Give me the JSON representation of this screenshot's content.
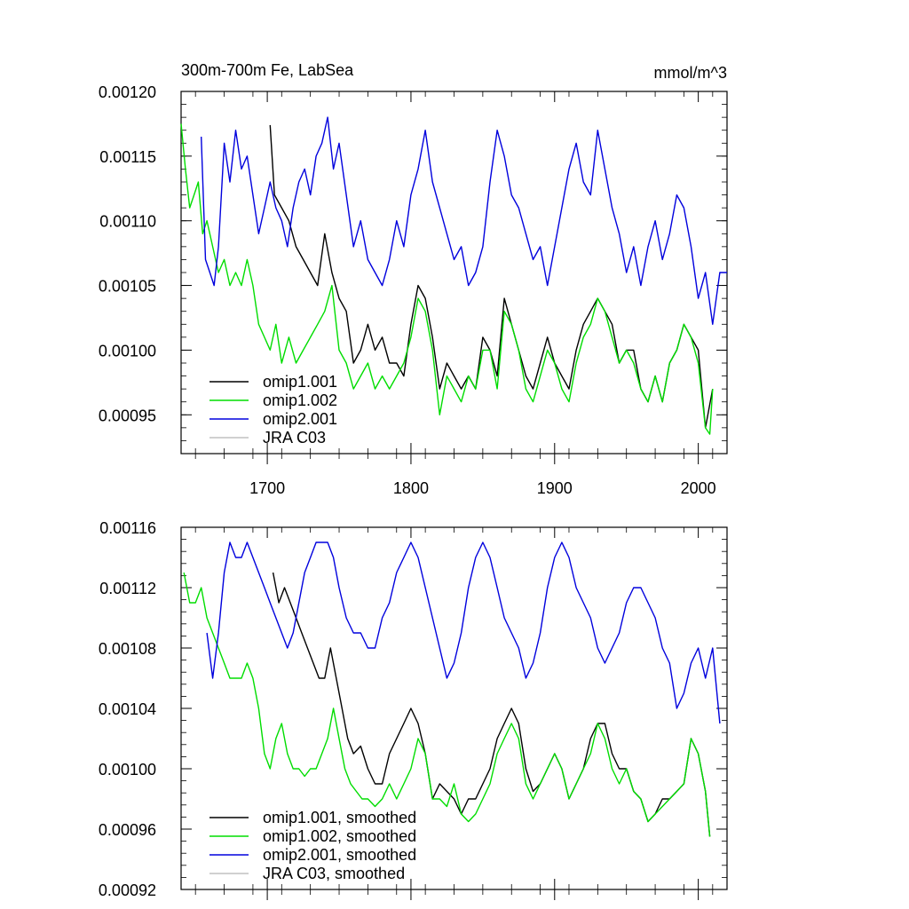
{
  "chart_data": [
    {
      "type": "line",
      "title": "300m-700m Fe, LabSea",
      "units": "mmol/m^3",
      "xlabel": "",
      "ylabel": "",
      "xlim": [
        1640,
        2020
      ],
      "ylim": [
        0.00092,
        0.0012
      ],
      "xticks": [
        1700,
        1800,
        1900,
        2000
      ],
      "xtick_labels": [
        "1700",
        "1800",
        "1900",
        "2000"
      ],
      "yticks": [
        0.00095,
        0.001,
        0.00105,
        0.0011,
        0.00115,
        0.0012
      ],
      "ytick_labels": [
        "0.00095",
        "0.00100",
        "0.00105",
        "0.00110",
        "0.00115",
        "0.00120"
      ],
      "grid": false,
      "legend_position": "bottom-left",
      "series": [
        {
          "name": "omip1.001",
          "color": "#000000",
          "x": [
            1702,
            1705,
            1710,
            1715,
            1720,
            1725,
            1730,
            1735,
            1740,
            1745,
            1750,
            1755,
            1760,
            1765,
            1770,
            1775,
            1780,
            1785,
            1790,
            1795,
            1800,
            1805,
            1810,
            1815,
            1820,
            1825,
            1830,
            1835,
            1840,
            1845,
            1850,
            1855,
            1860,
            1865,
            1870,
            1875,
            1880,
            1885,
            1890,
            1895,
            1900,
            1905,
            1910,
            1915,
            1920,
            1925,
            1930,
            1935,
            1940,
            1945,
            1950,
            1955,
            1960,
            1965,
            1970,
            1975,
            1980,
            1985,
            1990,
            1995,
            2000,
            2005,
            2010
          ],
          "y": [
            0.001174,
            0.00112,
            0.00111,
            0.0011,
            0.00108,
            0.00107,
            0.00106,
            0.00105,
            0.00109,
            0.00106,
            0.00104,
            0.00103,
            0.00099,
            0.001,
            0.00102,
            0.001,
            0.00101,
            0.00099,
            0.00099,
            0.00098,
            0.00102,
            0.00105,
            0.00104,
            0.00101,
            0.00097,
            0.00099,
            0.00098,
            0.00097,
            0.00098,
            0.00097,
            0.00101,
            0.001,
            0.00098,
            0.00104,
            0.00102,
            0.001,
            0.00098,
            0.00097,
            0.00099,
            0.00101,
            0.00099,
            0.00098,
            0.00097,
            0.001,
            0.00102,
            0.00103,
            0.00104,
            0.00103,
            0.00102,
            0.00099,
            0.001,
            0.001,
            0.00097,
            0.00096,
            0.00098,
            0.00096,
            0.00099,
            0.001,
            0.00102,
            0.00101,
            0.001,
            0.00094,
            0.00097
          ]
        },
        {
          "name": "omip1.002",
          "color": "#00dd00",
          "x": [
            1640,
            1643,
            1646,
            1649,
            1652,
            1655,
            1658,
            1662,
            1666,
            1670,
            1674,
            1678,
            1682,
            1686,
            1690,
            1694,
            1698,
            1702,
            1706,
            1710,
            1715,
            1720,
            1725,
            1730,
            1735,
            1740,
            1745,
            1750,
            1755,
            1760,
            1765,
            1770,
            1775,
            1780,
            1785,
            1790,
            1795,
            1800,
            1805,
            1810,
            1815,
            1820,
            1825,
            1830,
            1835,
            1840,
            1845,
            1850,
            1855,
            1860,
            1865,
            1870,
            1875,
            1880,
            1885,
            1890,
            1895,
            1900,
            1905,
            1910,
            1915,
            1920,
            1925,
            1930,
            1935,
            1940,
            1945,
            1950,
            1955,
            1960,
            1965,
            1970,
            1975,
            1980,
            1985,
            1990,
            1995,
            2000,
            2005,
            2008,
            2010
          ],
          "y": [
            0.001175,
            0.00114,
            0.00111,
            0.00112,
            0.00113,
            0.00109,
            0.0011,
            0.00108,
            0.00106,
            0.00107,
            0.00105,
            0.00106,
            0.00105,
            0.00107,
            0.00105,
            0.00102,
            0.00101,
            0.001,
            0.00102,
            0.00099,
            0.00101,
            0.00099,
            0.001,
            0.00101,
            0.00102,
            0.00103,
            0.00105,
            0.001,
            0.00099,
            0.00097,
            0.00098,
            0.00099,
            0.00097,
            0.00098,
            0.00097,
            0.00098,
            0.00099,
            0.00101,
            0.00104,
            0.00103,
            0.001,
            0.00095,
            0.00098,
            0.00097,
            0.00096,
            0.00098,
            0.00097,
            0.001,
            0.001,
            0.00097,
            0.00103,
            0.00102,
            0.001,
            0.00097,
            0.00096,
            0.00098,
            0.001,
            0.00099,
            0.00097,
            0.00096,
            0.00099,
            0.00101,
            0.00102,
            0.00104,
            0.00103,
            0.00101,
            0.00099,
            0.001,
            0.00099,
            0.00097,
            0.00096,
            0.00098,
            0.00096,
            0.00099,
            0.001,
            0.00102,
            0.00101,
            0.00099,
            0.00094,
            0.000935,
            0.00097
          ]
        },
        {
          "name": "omip2.001",
          "color": "#0000dd",
          "x": [
            1654,
            1657,
            1660,
            1663,
            1666,
            1670,
            1674,
            1678,
            1682,
            1686,
            1690,
            1694,
            1698,
            1702,
            1706,
            1710,
            1714,
            1718,
            1722,
            1726,
            1730,
            1734,
            1738,
            1742,
            1746,
            1750,
            1755,
            1760,
            1765,
            1770,
            1775,
            1780,
            1785,
            1790,
            1795,
            1800,
            1805,
            1810,
            1815,
            1820,
            1825,
            1830,
            1835,
            1840,
            1845,
            1850,
            1855,
            1860,
            1865,
            1870,
            1875,
            1880,
            1885,
            1890,
            1895,
            1900,
            1905,
            1910,
            1915,
            1920,
            1925,
            1930,
            1935,
            1940,
            1945,
            1950,
            1955,
            1960,
            1965,
            1970,
            1975,
            1980,
            1985,
            1990,
            1995,
            2000,
            2005,
            2010,
            2015,
            2020
          ],
          "y": [
            0.001165,
            0.00107,
            0.00106,
            0.00105,
            0.00108,
            0.00116,
            0.00113,
            0.00117,
            0.00114,
            0.00115,
            0.00112,
            0.00109,
            0.00111,
            0.00113,
            0.00111,
            0.0011,
            0.00108,
            0.00111,
            0.00113,
            0.00114,
            0.00112,
            0.00115,
            0.00116,
            0.00118,
            0.00114,
            0.00116,
            0.00112,
            0.00108,
            0.0011,
            0.00107,
            0.00106,
            0.00105,
            0.00107,
            0.0011,
            0.00108,
            0.00112,
            0.00114,
            0.00117,
            0.00113,
            0.00111,
            0.00109,
            0.00107,
            0.00108,
            0.00105,
            0.00106,
            0.00108,
            0.00113,
            0.00117,
            0.00115,
            0.00112,
            0.00111,
            0.00109,
            0.00107,
            0.00108,
            0.00105,
            0.00108,
            0.00111,
            0.00114,
            0.00116,
            0.00113,
            0.00112,
            0.00117,
            0.00114,
            0.00111,
            0.00109,
            0.00106,
            0.00108,
            0.00105,
            0.00108,
            0.0011,
            0.00107,
            0.00109,
            0.00112,
            0.00111,
            0.00108,
            0.00104,
            0.00106,
            0.00102,
            0.00106,
            0.00106
          ]
        },
        {
          "name": "JRA C03",
          "color": "#c0c0c0",
          "x": [],
          "y": []
        }
      ]
    },
    {
      "type": "line",
      "title": "",
      "xlabel": "",
      "ylabel": "",
      "xlim": [
        1640,
        2020
      ],
      "ylim": [
        0.00092,
        0.00116
      ],
      "xticks": [
        1700,
        1800,
        1900,
        2000
      ],
      "yticks": [
        0.00092,
        0.00096,
        0.001,
        0.00104,
        0.00108,
        0.00112,
        0.00116
      ],
      "ytick_labels": [
        "0.00092",
        "0.00096",
        "0.00100",
        "0.00104",
        "0.00108",
        "0.00112",
        "0.00116"
      ],
      "grid": false,
      "legend_position": "bottom-left",
      "series": [
        {
          "name": "omip1.001, smoothed",
          "color": "#000000",
          "x": [
            1704,
            1708,
            1712,
            1716,
            1720,
            1724,
            1728,
            1732,
            1736,
            1740,
            1744,
            1748,
            1752,
            1756,
            1760,
            1765,
            1770,
            1775,
            1780,
            1785,
            1790,
            1795,
            1800,
            1805,
            1810,
            1815,
            1820,
            1825,
            1830,
            1835,
            1840,
            1845,
            1850,
            1855,
            1860,
            1865,
            1870,
            1875,
            1880,
            1885,
            1890,
            1895,
            1900,
            1905,
            1910,
            1915,
            1920,
            1925,
            1930,
            1935,
            1940,
            1945,
            1950,
            1955,
            1960,
            1965,
            1970,
            1975,
            1980,
            1985,
            1990,
            1995,
            2000,
            2005,
            2008
          ],
          "y": [
            0.00113,
            0.00111,
            0.00112,
            0.00111,
            0.0011,
            0.00109,
            0.00108,
            0.00107,
            0.00106,
            0.00106,
            0.00108,
            0.00106,
            0.00104,
            0.00102,
            0.00101,
            0.001015,
            0.001,
            0.00099,
            0.00099,
            0.00101,
            0.00102,
            0.00103,
            0.00104,
            0.00103,
            0.00101,
            0.00098,
            0.00099,
            0.000985,
            0.00098,
            0.00097,
            0.00098,
            0.00098,
            0.00099,
            0.001,
            0.00102,
            0.00103,
            0.00104,
            0.00103,
            0.001,
            0.000985,
            0.00099,
            0.001,
            0.00101,
            0.001,
            0.00098,
            0.00099,
            0.001,
            0.00102,
            0.00103,
            0.00103,
            0.00101,
            0.001,
            0.001,
            0.000985,
            0.00098,
            0.000965,
            0.00097,
            0.00098,
            0.00098,
            0.000985,
            0.00099,
            0.00102,
            0.00101,
            0.000985,
            0.000955
          ]
        },
        {
          "name": "omip1.002, smoothed",
          "color": "#00dd00",
          "x": [
            1642,
            1646,
            1650,
            1654,
            1658,
            1662,
            1666,
            1670,
            1674,
            1678,
            1682,
            1686,
            1690,
            1694,
            1698,
            1702,
            1706,
            1710,
            1714,
            1718,
            1722,
            1726,
            1730,
            1734,
            1738,
            1742,
            1746,
            1750,
            1754,
            1758,
            1762,
            1766,
            1770,
            1775,
            1780,
            1785,
            1790,
            1795,
            1800,
            1805,
            1810,
            1815,
            1820,
            1825,
            1830,
            1835,
            1840,
            1845,
            1850,
            1855,
            1860,
            1865,
            1870,
            1875,
            1880,
            1885,
            1890,
            1895,
            1900,
            1905,
            1910,
            1915,
            1920,
            1925,
            1930,
            1935,
            1940,
            1945,
            1950,
            1955,
            1960,
            1965,
            1970,
            1975,
            1980,
            1985,
            1990,
            1995,
            2000,
            2005,
            2008
          ],
          "y": [
            0.00113,
            0.00111,
            0.00111,
            0.00112,
            0.0011,
            0.00109,
            0.00108,
            0.00107,
            0.00106,
            0.00106,
            0.00106,
            0.00107,
            0.00106,
            0.00104,
            0.00101,
            0.001,
            0.00102,
            0.00103,
            0.00101,
            0.001,
            0.001,
            0.000995,
            0.001,
            0.001,
            0.00101,
            0.00102,
            0.00104,
            0.00102,
            0.001,
            0.00099,
            0.000985,
            0.00098,
            0.00098,
            0.000975,
            0.00098,
            0.00099,
            0.00098,
            0.00099,
            0.001,
            0.00102,
            0.00101,
            0.00098,
            0.00098,
            0.000975,
            0.00099,
            0.00097,
            0.000965,
            0.00097,
            0.00098,
            0.00099,
            0.00101,
            0.00102,
            0.00103,
            0.00102,
            0.00099,
            0.00098,
            0.00099,
            0.001,
            0.00101,
            0.001,
            0.00098,
            0.00099,
            0.001,
            0.00101,
            0.00103,
            0.00102,
            0.001,
            0.00099,
            0.001,
            0.000985,
            0.00098,
            0.000965,
            0.00097,
            0.000975,
            0.00098,
            0.000985,
            0.00099,
            0.00102,
            0.00101,
            0.000985,
            0.000955
          ]
        },
        {
          "name": "omip2.001, smoothed",
          "color": "#0000dd",
          "x": [
            1658,
            1662,
            1666,
            1670,
            1674,
            1678,
            1682,
            1686,
            1690,
            1694,
            1698,
            1702,
            1706,
            1710,
            1714,
            1718,
            1722,
            1726,
            1730,
            1734,
            1738,
            1742,
            1746,
            1750,
            1755,
            1760,
            1765,
            1770,
            1775,
            1780,
            1785,
            1790,
            1795,
            1800,
            1805,
            1810,
            1815,
            1820,
            1825,
            1830,
            1835,
            1840,
            1845,
            1850,
            1855,
            1860,
            1865,
            1870,
            1875,
            1880,
            1885,
            1890,
            1895,
            1900,
            1905,
            1910,
            1915,
            1920,
            1925,
            1930,
            1935,
            1940,
            1945,
            1950,
            1955,
            1960,
            1965,
            1970,
            1975,
            1980,
            1985,
            1990,
            1995,
            2000,
            2005,
            2010,
            2015
          ],
          "y": [
            0.00109,
            0.00106,
            0.00109,
            0.00113,
            0.00115,
            0.00114,
            0.00114,
            0.00115,
            0.00114,
            0.00113,
            0.00112,
            0.00111,
            0.0011,
            0.00109,
            0.00108,
            0.00109,
            0.00111,
            0.00113,
            0.00114,
            0.00115,
            0.00115,
            0.00115,
            0.00114,
            0.00112,
            0.0011,
            0.00109,
            0.00109,
            0.00108,
            0.00108,
            0.0011,
            0.00111,
            0.00113,
            0.00114,
            0.00115,
            0.00114,
            0.00112,
            0.0011,
            0.00108,
            0.00106,
            0.00107,
            0.00109,
            0.00112,
            0.00114,
            0.00115,
            0.00114,
            0.00112,
            0.0011,
            0.00109,
            0.00108,
            0.00106,
            0.00107,
            0.00109,
            0.00112,
            0.00114,
            0.00115,
            0.00114,
            0.00112,
            0.00111,
            0.0011,
            0.00108,
            0.00107,
            0.00108,
            0.00109,
            0.00111,
            0.00112,
            0.00112,
            0.00111,
            0.0011,
            0.00108,
            0.00107,
            0.00104,
            0.00105,
            0.00107,
            0.00108,
            0.00106,
            0.00108,
            0.00103
          ]
        },
        {
          "name": "JRA C03, smoothed",
          "color": "#c0c0c0",
          "x": [],
          "y": []
        }
      ]
    }
  ]
}
